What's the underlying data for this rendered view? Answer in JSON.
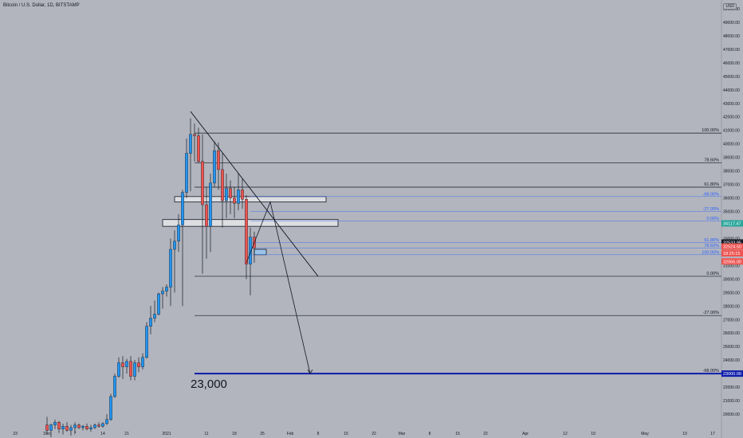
{
  "header": {
    "symbol_title": "Bitcoin / U.S. Dollar, 1D, BITSTAMP",
    "currency": "USD"
  },
  "colors": {
    "background": "#b2b5be",
    "up": "#2196f3",
    "down": "#ef5350",
    "fib_black": "#131722",
    "fib_blue": "#2962ff",
    "target_line": "#0d1bab",
    "last_price_tag": "#26a69a",
    "red_tag": "#ef5350",
    "dark_tag": "#131722"
  },
  "chart_data": {
    "type": "candlestick",
    "y_range": [
      19000,
      50000
    ],
    "y_ticks": [
      "20000.00",
      "21000.00",
      "22000.00",
      "23000.00",
      "24000.00",
      "25000.00",
      "26000.00",
      "27000.00",
      "28000.00",
      "29000.00",
      "30000.00",
      "31000.00",
      "32000.00",
      "33000.00",
      "34000.00",
      "35000.00",
      "36000.00",
      "37000.00",
      "38000.00",
      "39000.00",
      "40000.00",
      "41000.00",
      "42000.00",
      "43000.00",
      "44000.00",
      "45000.00",
      "46000.00",
      "47000.00",
      "48000.00",
      "49000.00",
      "50000.00"
    ],
    "x_tick_labels": [
      {
        "day": -38,
        "label": "23"
      },
      {
        "day": -30,
        "label": "Dec"
      },
      {
        "day": -23,
        "label": "7"
      },
      {
        "day": -16,
        "label": "14"
      },
      {
        "day": -10,
        "label": "21"
      },
      {
        "day": 0,
        "label": "2021"
      },
      {
        "day": 10,
        "label": "11"
      },
      {
        "day": 17,
        "label": "18"
      },
      {
        "day": 24,
        "label": "25"
      },
      {
        "day": 31,
        "label": "Feb"
      },
      {
        "day": 38,
        "label": "8"
      },
      {
        "day": 45,
        "label": "15"
      },
      {
        "day": 52,
        "label": "22"
      },
      {
        "day": 59,
        "label": "Mar"
      },
      {
        "day": 66,
        "label": "8"
      },
      {
        "day": 73,
        "label": "15"
      },
      {
        "day": 80,
        "label": "22"
      },
      {
        "day": 90,
        "label": "Apr"
      },
      {
        "day": 100,
        "label": "12"
      },
      {
        "day": 107,
        "label": "19"
      },
      {
        "day": 120,
        "label": "May"
      },
      {
        "day": 130,
        "label": "10"
      },
      {
        "day": 137,
        "label": "17"
      }
    ],
    "candles": [
      {
        "day": -30,
        "o": 19200,
        "h": 19800,
        "l": 18500,
        "c": 18800
      },
      {
        "day": -29,
        "o": 18800,
        "h": 19300,
        "l": 18300,
        "c": 19200
      },
      {
        "day": -28,
        "o": 19200,
        "h": 19600,
        "l": 18900,
        "c": 19400
      },
      {
        "day": -27,
        "o": 19400,
        "h": 19500,
        "l": 18600,
        "c": 18900
      },
      {
        "day": -26,
        "o": 18900,
        "h": 19300,
        "l": 18500,
        "c": 19100
      },
      {
        "day": -25,
        "o": 19100,
        "h": 19400,
        "l": 18700,
        "c": 18800
      },
      {
        "day": -24,
        "o": 18800,
        "h": 19200,
        "l": 18400,
        "c": 19000
      },
      {
        "day": -23,
        "o": 19000,
        "h": 19400,
        "l": 18600,
        "c": 19200
      },
      {
        "day": -22,
        "o": 19200,
        "h": 19300,
        "l": 18900,
        "c": 19000
      },
      {
        "day": -21,
        "o": 19000,
        "h": 19200,
        "l": 18800,
        "c": 19100
      },
      {
        "day": -20,
        "o": 19100,
        "h": 19300,
        "l": 18800,
        "c": 18900
      },
      {
        "day": -19,
        "o": 18900,
        "h": 19200,
        "l": 18700,
        "c": 19000
      },
      {
        "day": -18,
        "o": 19000,
        "h": 19300,
        "l": 18900,
        "c": 19200
      },
      {
        "day": -17,
        "o": 19200,
        "h": 19400,
        "l": 19000,
        "c": 19100
      },
      {
        "day": -16,
        "o": 19100,
        "h": 19400,
        "l": 19000,
        "c": 19300
      },
      {
        "day": -15,
        "o": 19300,
        "h": 20000,
        "l": 19200,
        "c": 19600
      },
      {
        "day": -14,
        "o": 19600,
        "h": 21500,
        "l": 19500,
        "c": 21300
      },
      {
        "day": -13,
        "o": 21300,
        "h": 23000,
        "l": 21200,
        "c": 22800
      },
      {
        "day": -12,
        "o": 22800,
        "h": 24200,
        "l": 22700,
        "c": 23800
      },
      {
        "day": -11,
        "o": 23800,
        "h": 24300,
        "l": 22600,
        "c": 23500
      },
      {
        "day": -10,
        "o": 23500,
        "h": 24100,
        "l": 23000,
        "c": 23900
      },
      {
        "day": -9,
        "o": 23900,
        "h": 24300,
        "l": 22500,
        "c": 22800
      },
      {
        "day": -8,
        "o": 22800,
        "h": 24000,
        "l": 22500,
        "c": 23800
      },
      {
        "day": -7,
        "o": 23800,
        "h": 24200,
        "l": 23100,
        "c": 23500
      },
      {
        "day": -6,
        "o": 23500,
        "h": 24500,
        "l": 23300,
        "c": 24200
      },
      {
        "day": -5,
        "o": 24200,
        "h": 26800,
        "l": 24100,
        "c": 26500
      },
      {
        "day": -4,
        "o": 26500,
        "h": 28000,
        "l": 25900,
        "c": 27100
      },
      {
        "day": -3,
        "o": 27100,
        "h": 28400,
        "l": 26800,
        "c": 27400
      },
      {
        "day": -2,
        "o": 27400,
        "h": 29000,
        "l": 27300,
        "c": 28900
      },
      {
        "day": -1,
        "o": 28900,
        "h": 29400,
        "l": 27800,
        "c": 29100
      },
      {
        "day": 0,
        "o": 29100,
        "h": 29600,
        "l": 28700,
        "c": 29400
      },
      {
        "day": 1,
        "o": 29400,
        "h": 33000,
        "l": 28000,
        "c": 32200
      },
      {
        "day": 2,
        "o": 32200,
        "h": 33600,
        "l": 29000,
        "c": 32800
      },
      {
        "day": 3,
        "o": 32800,
        "h": 34800,
        "l": 32000,
        "c": 34000
      },
      {
        "day": 4,
        "o": 34000,
        "h": 36600,
        "l": 28000,
        "c": 36400
      },
      {
        "day": 5,
        "o": 36400,
        "h": 40400,
        "l": 36000,
        "c": 39300
      },
      {
        "day": 6,
        "o": 39300,
        "h": 41900,
        "l": 36500,
        "c": 40700
      },
      {
        "day": 7,
        "o": 40700,
        "h": 41500,
        "l": 38700,
        "c": 40600
      },
      {
        "day": 8,
        "o": 40600,
        "h": 41200,
        "l": 38600,
        "c": 38700
      },
      {
        "day": 9,
        "o": 38700,
        "h": 40700,
        "l": 30400,
        "c": 35500
      },
      {
        "day": 10,
        "o": 35500,
        "h": 36800,
        "l": 31500,
        "c": 33900
      },
      {
        "day": 11,
        "o": 33900,
        "h": 37800,
        "l": 32000,
        "c": 37100
      },
      {
        "day": 12,
        "o": 37100,
        "h": 40200,
        "l": 36800,
        "c": 39500
      },
      {
        "day": 13,
        "o": 39500,
        "h": 40100,
        "l": 36600,
        "c": 38100
      },
      {
        "day": 14,
        "o": 38100,
        "h": 39300,
        "l": 33800,
        "c": 35800
      },
      {
        "day": 15,
        "o": 35800,
        "h": 37800,
        "l": 34500,
        "c": 36700
      },
      {
        "day": 16,
        "o": 36700,
        "h": 37300,
        "l": 34800,
        "c": 36000
      },
      {
        "day": 17,
        "o": 36000,
        "h": 36800,
        "l": 34500,
        "c": 35600
      },
      {
        "day": 18,
        "o": 35600,
        "h": 37800,
        "l": 35100,
        "c": 36600
      },
      {
        "day": 19,
        "o": 36600,
        "h": 37400,
        "l": 35200,
        "c": 35900
      },
      {
        "day": 20,
        "o": 35900,
        "h": 36200,
        "l": 30000,
        "c": 31100
      },
      {
        "day": 21,
        "o": 31100,
        "h": 33800,
        "l": 28800,
        "c": 33100
      },
      {
        "day": 22,
        "o": 33100,
        "h": 33500,
        "l": 31200,
        "c": 32300
      }
    ],
    "annotations": {
      "trendline": {
        "from": {
          "day": 6,
          "price": 42400
        },
        "to": {
          "day": 38,
          "price": 30200
        }
      },
      "projection_arrow": {
        "points": [
          {
            "day": 20,
            "price": 31200
          },
          {
            "day": 26,
            "price": 35700
          },
          {
            "day": 36,
            "price": 23000
          }
        ]
      },
      "supply_zones": [
        {
          "day_start": 2,
          "day_end": 40,
          "price_low": 35700,
          "price_high": 36100
        },
        {
          "day_start": -1,
          "day_end": 43,
          "price_low": 33900,
          "price_high": 34400
        }
      ],
      "small_box": {
        "day_start": 22,
        "day_end": 25,
        "price_low": 31800,
        "price_high": 32200
      },
      "fib_levels_major": [
        {
          "label": "100.00%",
          "price": 40800
        },
        {
          "label": "78.60%",
          "price": 38600
        },
        {
          "label": "61.80%",
          "price": 36800
        },
        {
          "label": "0.00%",
          "price": 30200
        },
        {
          "label": "-27.00%",
          "price": 27300
        },
        {
          "label": "-68.00%",
          "price": 23000
        }
      ],
      "fib_levels_minor": [
        {
          "label": "-68.00%",
          "price": 36100
        },
        {
          "label": "-27.00%",
          "price": 35000
        },
        {
          "label": "0.00%",
          "price": 34300
        },
        {
          "label": "61.80%",
          "price": 32700
        },
        {
          "label": "78.60%",
          "price": 32300
        },
        {
          "label": "100.00%",
          "price": 31800
        }
      ],
      "target": {
        "price": 23000,
        "text": "23,000"
      }
    },
    "price_tags": [
      {
        "price": 34117.47,
        "label": "34117.47",
        "kind": "last_price_tag"
      },
      {
        "price": 32700,
        "label": "32533.95",
        "kind": "dark_tag"
      },
      {
        "price": 32400,
        "label": "32524.50",
        "kind": "red_tag"
      },
      {
        "price": 31900,
        "label": "18:25:15",
        "kind": "red_tag"
      },
      {
        "price": 31300,
        "label": "32066.00",
        "kind": "red_tag"
      },
      {
        "price": 23000,
        "label": "23000.00",
        "kind": "target_line"
      }
    ]
  }
}
